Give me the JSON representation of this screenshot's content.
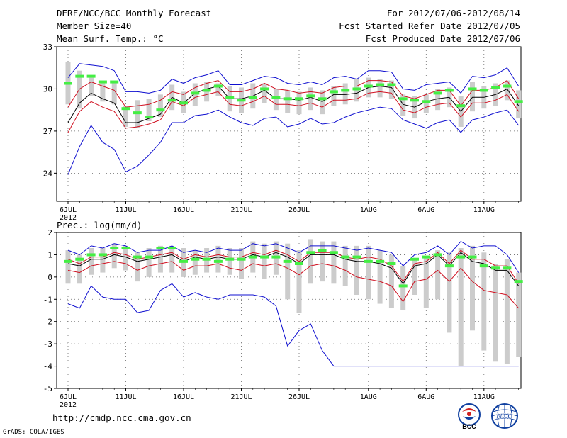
{
  "header": {
    "line1_left": "DERF/NCC/BCC Monthly Forecast",
    "line2_left": "Member Size=40",
    "line3_left": "Mean Surf. Temp.: °C",
    "line1_right": "For 2012/07/06-2012/08/14",
    "line2_right": "Fcst Started Refer Date 2012/07/05",
    "line3_right": "Fcst Produced Date 2012/07/06"
  },
  "footer": {
    "url": "http://cmdp.ncc.cma.gov.cn",
    "grads": "GrADS: COLA/IGES",
    "logo1_text": "BCC",
    "logo2_text": "NCC"
  },
  "colors": {
    "blue": "#1010d0",
    "red": "#d01020",
    "black": "#000000",
    "green": "#44ee44",
    "gray": "#cccccc"
  },
  "chart_data": [
    {
      "type": "line",
      "name": "temperature",
      "title": "Mean Surf. Temp.: °C",
      "ylim": [
        22,
        33
      ],
      "yticks": [
        24,
        27,
        30,
        33
      ],
      "x_tick_labels": [
        "6JUL",
        "11JUL",
        "16JUL",
        "21JUL",
        "26JUL",
        "1AUG",
        "6AUG",
        "11AUG"
      ],
      "x_tick_days": [
        0,
        5,
        10,
        15,
        20,
        26,
        31,
        36
      ],
      "year_label": "2012",
      "series": [
        {
          "name": "max",
          "color": "blue",
          "values": [
            30.8,
            31.8,
            31.7,
            31.6,
            31.3,
            29.8,
            29.8,
            29.7,
            29.9,
            30.7,
            30.4,
            30.8,
            31.0,
            31.3,
            30.3,
            30.3,
            30.6,
            30.9,
            30.8,
            30.4,
            30.3,
            30.5,
            30.3,
            30.8,
            30.9,
            30.7,
            31.3,
            31.3,
            31.2,
            30.0,
            29.9,
            30.3,
            30.4,
            30.5,
            29.7,
            30.9,
            30.8,
            31.0,
            31.5,
            30.2
          ]
        },
        {
          "name": "upper",
          "color": "red",
          "values": [
            28.7,
            30.0,
            30.5,
            30.2,
            29.9,
            28.7,
            28.8,
            28.9,
            29.2,
            29.8,
            29.6,
            30.1,
            30.4,
            30.6,
            29.8,
            29.8,
            30.0,
            30.4,
            30.0,
            29.9,
            29.7,
            29.8,
            29.7,
            30.1,
            30.2,
            30.2,
            30.6,
            30.6,
            30.5,
            29.5,
            29.3,
            29.6,
            29.9,
            29.9,
            28.8,
            29.9,
            29.9,
            30.1,
            30.6,
            29.3
          ]
        },
        {
          "name": "mean",
          "color": "black",
          "values": [
            27.6,
            29.0,
            29.7,
            29.3,
            29.0,
            27.6,
            27.6,
            27.9,
            28.2,
            29.4,
            29.0,
            29.7,
            30.0,
            30.2,
            29.3,
            29.3,
            29.5,
            29.9,
            29.3,
            29.3,
            29.2,
            29.4,
            29.1,
            29.6,
            29.6,
            29.7,
            30.1,
            30.2,
            30.1,
            28.9,
            28.7,
            29.1,
            29.3,
            29.4,
            28.4,
            29.4,
            29.4,
            29.6,
            30.0,
            28.8
          ]
        },
        {
          "name": "lower",
          "color": "red",
          "values": [
            26.9,
            28.4,
            29.1,
            28.7,
            28.4,
            27.2,
            27.3,
            27.5,
            27.8,
            29.1,
            28.8,
            29.4,
            29.6,
            29.8,
            28.9,
            28.8,
            29.1,
            29.5,
            28.9,
            28.9,
            28.8,
            29.0,
            28.7,
            29.2,
            29.2,
            29.3,
            29.7,
            29.8,
            29.7,
            28.5,
            28.3,
            28.7,
            28.9,
            29.0,
            28.0,
            29.0,
            29.0,
            29.2,
            29.6,
            28.4
          ]
        },
        {
          "name": "min",
          "color": "blue",
          "values": [
            23.9,
            25.9,
            27.4,
            26.2,
            25.7,
            24.1,
            24.5,
            25.3,
            26.2,
            27.6,
            27.6,
            28.1,
            28.2,
            28.5,
            28.0,
            27.6,
            27.4,
            27.9,
            28.0,
            27.3,
            27.5,
            27.9,
            27.5,
            27.6,
            28.0,
            28.3,
            28.5,
            28.7,
            28.6,
            27.8,
            27.5,
            27.2,
            27.6,
            27.8,
            26.9,
            27.8,
            28.0,
            28.3,
            28.5,
            27.4
          ]
        }
      ],
      "ensemble_range": [
        [
          28.9,
          31.9
        ],
        [
          28.6,
          31.3
        ],
        [
          29.5,
          30.8
        ],
        [
          29.1,
          30.4
        ],
        [
          28.9,
          30.5
        ],
        [
          27.3,
          28.8
        ],
        [
          27.2,
          29.2
        ],
        [
          27.7,
          29.3
        ],
        [
          28.0,
          29.6
        ],
        [
          28.5,
          30.3
        ],
        [
          28.3,
          29.8
        ],
        [
          28.8,
          30.4
        ],
        [
          29.1,
          30.5
        ],
        [
          29.5,
          30.4
        ],
        [
          28.4,
          30.2
        ],
        [
          28.3,
          30.1
        ],
        [
          28.6,
          30.4
        ],
        [
          29.0,
          30.4
        ],
        [
          28.5,
          30.0
        ],
        [
          28.3,
          29.9
        ],
        [
          28.2,
          29.8
        ],
        [
          28.5,
          30.1
        ],
        [
          28.2,
          29.9
        ],
        [
          28.8,
          30.2
        ],
        [
          28.9,
          30.4
        ],
        [
          29.1,
          30.7
        ],
        [
          29.4,
          30.8
        ],
        [
          29.4,
          30.7
        ],
        [
          29.3,
          30.6
        ],
        [
          28.1,
          29.6
        ],
        [
          27.9,
          29.5
        ],
        [
          28.3,
          29.6
        ],
        [
          28.5,
          30.0
        ],
        [
          28.7,
          30.1
        ],
        [
          27.3,
          29.5
        ],
        [
          28.4,
          30.5
        ],
        [
          28.6,
          30.2
        ],
        [
          28.8,
          30.4
        ],
        [
          29.2,
          30.6
        ],
        [
          27.9,
          29.9
        ]
      ],
      "observed_green": [
        30.4,
        30.9,
        30.9,
        30.5,
        30.5,
        28.6,
        28.3,
        28.0,
        28.5,
        29.2,
        29.0,
        29.7,
        29.9,
        30.2,
        29.4,
        29.2,
        29.4,
        30.0,
        29.4,
        29.3,
        29.3,
        29.5,
        29.3,
        29.8,
        29.9,
        30.0,
        30.2,
        30.3,
        30.3,
        29.3,
        29.2,
        29.1,
        29.7,
        29.9,
        28.8,
        30.0,
        29.9,
        30.1,
        30.2,
        29.1
      ]
    },
    {
      "type": "line",
      "name": "precipitation",
      "title": "Prec.: log(mm/d)",
      "ylim": [
        -5,
        2
      ],
      "yticks": [
        -5,
        -4,
        -3,
        -2,
        -1,
        0,
        1,
        2
      ],
      "x_tick_labels": [
        "6JUL",
        "11JUL",
        "16JUL",
        "21JUL",
        "26JUL",
        "1AUG",
        "6AUG",
        "11AUG"
      ],
      "x_tick_days": [
        0,
        5,
        10,
        15,
        20,
        26,
        31,
        36
      ],
      "year_label": "2012",
      "series": [
        {
          "name": "max",
          "color": "blue",
          "values": [
            1.2,
            1.0,
            1.4,
            1.3,
            1.5,
            1.4,
            1.1,
            1.2,
            1.2,
            1.4,
            1.1,
            1.2,
            1.1,
            1.3,
            1.2,
            1.2,
            1.5,
            1.4,
            1.5,
            1.3,
            1.1,
            1.4,
            1.4,
            1.4,
            1.3,
            1.2,
            1.3,
            1.2,
            1.1,
            0.5,
            1.0,
            1.1,
            1.4,
            1.0,
            1.6,
            1.3,
            1.4,
            1.4,
            1.0,
            0.2
          ]
        },
        {
          "name": "upper",
          "color": "red",
          "values": [
            0.8,
            0.6,
            0.9,
            0.9,
            1.1,
            1.0,
            0.8,
            0.9,
            1.0,
            1.1,
            0.8,
            1.0,
            0.9,
            1.0,
            0.9,
            0.9,
            1.1,
            1.0,
            1.2,
            1.0,
            0.7,
            1.1,
            1.1,
            1.1,
            0.9,
            0.8,
            0.9,
            0.8,
            0.5,
            -0.2,
            0.6,
            0.7,
            1.1,
            0.6,
            1.2,
            0.8,
            0.8,
            0.5,
            0.5,
            -0.3
          ]
        },
        {
          "name": "mean",
          "color": "black",
          "values": [
            0.6,
            0.5,
            0.8,
            0.8,
            1.0,
            0.9,
            0.7,
            0.8,
            0.9,
            1.0,
            0.7,
            0.9,
            0.8,
            0.9,
            0.8,
            0.8,
            1.0,
            0.9,
            1.1,
            0.9,
            0.6,
            1.0,
            1.0,
            1.0,
            0.8,
            0.7,
            0.7,
            0.6,
            0.4,
            -0.3,
            0.5,
            0.6,
            1.0,
            0.5,
            1.1,
            0.7,
            0.6,
            0.3,
            0.3,
            -0.4
          ]
        },
        {
          "name": "lower",
          "color": "red",
          "values": [
            0.3,
            0.2,
            0.5,
            0.6,
            0.7,
            0.6,
            0.3,
            0.5,
            0.6,
            0.7,
            0.3,
            0.5,
            0.5,
            0.6,
            0.4,
            0.3,
            0.6,
            0.5,
            0.6,
            0.4,
            0.1,
            0.5,
            0.6,
            0.5,
            0.3,
            0.0,
            -0.1,
            -0.2,
            -0.4,
            -1.1,
            -0.2,
            -0.1,
            0.3,
            -0.2,
            0.4,
            -0.2,
            -0.6,
            -0.7,
            -0.8,
            -1.4
          ]
        },
        {
          "name": "min",
          "color": "blue",
          "values": [
            -1.2,
            -1.4,
            -0.4,
            -0.9,
            -1.0,
            -1.0,
            -1.6,
            -1.5,
            -0.6,
            -0.3,
            -0.9,
            -0.7,
            -0.9,
            -1.0,
            -0.8,
            -0.8,
            -0.8,
            -0.9,
            -1.3,
            -3.1,
            -2.4,
            -2.1,
            -3.3,
            -4.0,
            -4.0,
            -4.0,
            -4.0,
            -4.0,
            -4.0,
            -4.0,
            -4.0,
            -4.0,
            -4.0,
            -4.0,
            -4.0,
            -4.0,
            -4.0,
            -4.0,
            -4.0,
            -4.0
          ]
        }
      ],
      "ensemble_range": [
        [
          -0.3,
          1.2
        ],
        [
          -0.3,
          1.0
        ],
        [
          0.1,
          1.3
        ],
        [
          0.2,
          1.3
        ],
        [
          0.4,
          1.5
        ],
        [
          0.3,
          1.4
        ],
        [
          -0.2,
          1.1
        ],
        [
          0.0,
          1.3
        ],
        [
          0.2,
          1.4
        ],
        [
          0.2,
          1.4
        ],
        [
          0.0,
          1.3
        ],
        [
          0.1,
          1.2
        ],
        [
          0.2,
          1.3
        ],
        [
          0.2,
          1.4
        ],
        [
          0.1,
          1.3
        ],
        [
          -0.1,
          1.3
        ],
        [
          0.2,
          1.6
        ],
        [
          -0.1,
          1.5
        ],
        [
          0.1,
          1.6
        ],
        [
          -1.0,
          1.5
        ],
        [
          -1.6,
          1.2
        ],
        [
          -0.3,
          1.7
        ],
        [
          -0.2,
          1.6
        ],
        [
          -0.3,
          1.6
        ],
        [
          -0.4,
          1.4
        ],
        [
          -0.8,
          1.4
        ],
        [
          -1.0,
          1.4
        ],
        [
          -1.2,
          1.2
        ],
        [
          -1.4,
          1.0
        ],
        [
          -1.5,
          0.5
        ],
        [
          -0.8,
          0.8
        ],
        [
          -1.4,
          0.9
        ],
        [
          -1.0,
          1.2
        ],
        [
          -2.5,
          1.1
        ],
        [
          -4.0,
          1.3
        ],
        [
          -2.4,
          1.4
        ],
        [
          -3.3,
          1.1
        ],
        [
          -3.8,
          0.6
        ],
        [
          -3.9,
          0.8
        ],
        [
          -3.6,
          0.2
        ]
      ],
      "observed_green": [
        0.7,
        0.8,
        1.0,
        1.0,
        1.3,
        1.3,
        0.9,
        0.9,
        1.3,
        1.3,
        0.7,
        0.8,
        0.8,
        0.7,
        0.8,
        0.8,
        0.9,
        0.9,
        0.9,
        0.7,
        0.6,
        1.1,
        1.2,
        1.1,
        0.9,
        0.9,
        0.7,
        0.7,
        0.6,
        -0.4,
        0.8,
        0.9,
        1.0,
        0.5,
        0.9,
        0.9,
        0.5,
        0.4,
        0.4,
        -0.2
      ]
    }
  ]
}
